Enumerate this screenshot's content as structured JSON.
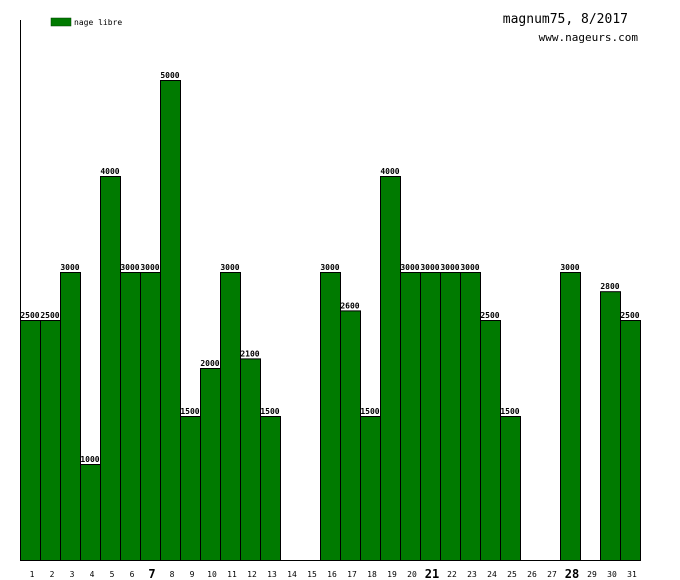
{
  "header": {
    "title": "magnum75, 8/2017",
    "site": "www.nageurs.com"
  },
  "legend": {
    "label": "nage libre",
    "color": "#007a00"
  },
  "chart_data": {
    "type": "bar",
    "title": "magnum75, 8/2017",
    "xlabel": "",
    "ylabel": "",
    "ylim": [
      0,
      5500
    ],
    "grid": false,
    "legend_position": "top-left",
    "categories": [
      "1",
      "2",
      "3",
      "4",
      "5",
      "6",
      "7",
      "8",
      "9",
      "10",
      "11",
      "12",
      "13",
      "14",
      "15",
      "16",
      "17",
      "18",
      "19",
      "20",
      "21",
      "22",
      "23",
      "24",
      "25",
      "26",
      "27",
      "28",
      "29",
      "30",
      "31"
    ],
    "emphasized_categories": [
      "7",
      "21",
      "28"
    ],
    "series": [
      {
        "name": "nage libre",
        "color": "#007a00",
        "values": [
          2500,
          2500,
          3000,
          1000,
          4000,
          3000,
          3000,
          5000,
          1500,
          2000,
          3000,
          2100,
          1500,
          null,
          null,
          3000,
          2600,
          1500,
          4000,
          3000,
          3000,
          3000,
          3000,
          2500,
          1500,
          null,
          null,
          3000,
          null,
          2800,
          2500
        ]
      }
    ]
  }
}
